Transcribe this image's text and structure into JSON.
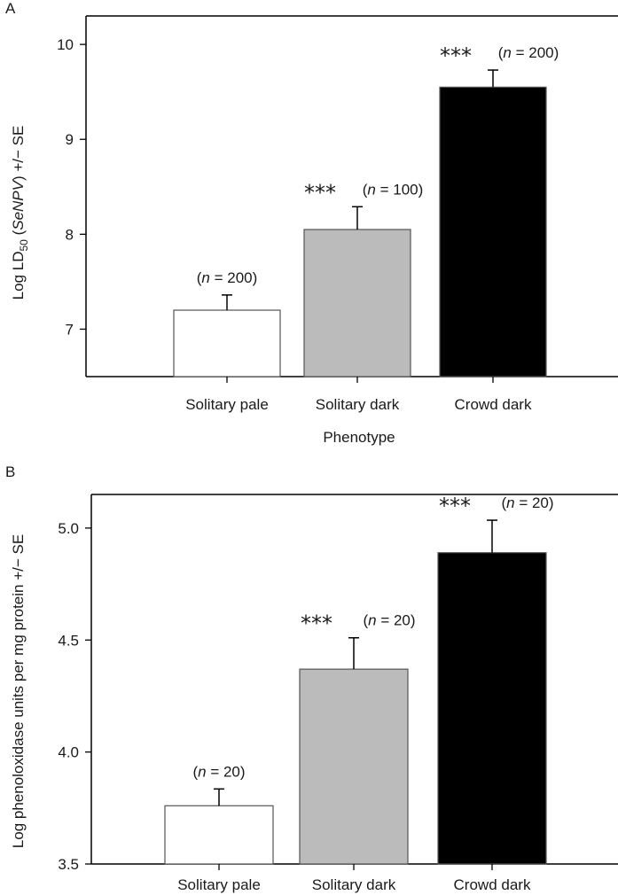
{
  "chart_data": [
    {
      "type": "bar",
      "panel_label": "A",
      "categories": [
        "Solitary pale",
        "Solitary dark",
        "Crowd dark"
      ],
      "values": [
        7.2,
        8.05,
        9.55
      ],
      "error_plus": [
        0.16,
        0.24,
        0.18
      ],
      "bar_colors": [
        "#ffffff",
        "#bbbbbb",
        "#000000"
      ],
      "n_labels": [
        "(n = 200)",
        "(n = 100)",
        "(n = 200)"
      ],
      "significance": [
        "",
        "***",
        "***"
      ],
      "ylabel_prefix": "Log LD",
      "ylabel_sub": "50",
      "ylabel_mid": " (",
      "ylabel_italic": "SeNPV",
      "ylabel_suffix": ") +/− SE",
      "xlabel": "Phenotype",
      "yticks": [
        "7",
        "8",
        "9",
        "10"
      ],
      "ylim": [
        6.5,
        10.3
      ],
      "grid": false
    },
    {
      "type": "bar",
      "panel_label": "B",
      "categories": [
        "Solitary pale",
        "Solitary dark",
        "Crowd dark"
      ],
      "values": [
        3.76,
        4.37,
        4.89
      ],
      "error_plus": [
        0.075,
        0.14,
        0.145
      ],
      "bar_colors": [
        "#ffffff",
        "#bbbbbb",
        "#000000"
      ],
      "n_labels": [
        "(n = 20)",
        "(n = 20)",
        "(n = 20)"
      ],
      "significance": [
        "",
        "***",
        "***"
      ],
      "ylabel": "Log phenoloxidase units per mg protein +/− SE",
      "xlabel": "",
      "yticks": [
        "3.5",
        "4.0",
        "4.5",
        "5.0"
      ],
      "ylim": [
        3.5,
        5.15
      ],
      "grid": false
    }
  ]
}
